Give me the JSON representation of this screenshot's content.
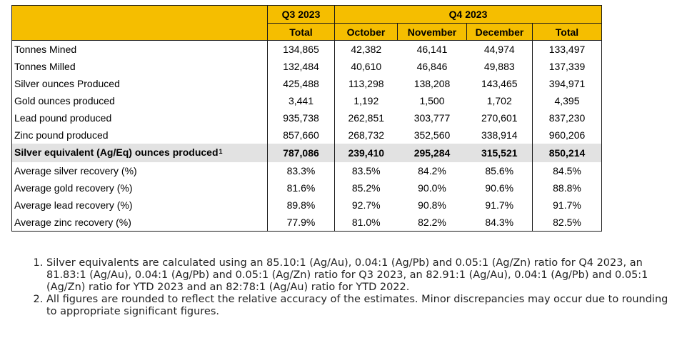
{
  "table": {
    "header_groups": {
      "q3": "Q3 2023",
      "q4": "Q4 2023"
    },
    "columns": [
      "Total",
      "October",
      "November",
      "December",
      "Total"
    ],
    "rows": [
      {
        "label": "Tonnes Mined",
        "sup": "",
        "values": [
          "134,865",
          "42,382",
          "46,141",
          "44,974",
          "133,497"
        ]
      },
      {
        "label": "Tonnes Milled",
        "sup": "",
        "values": [
          "132,484",
          "40,610",
          "46,846",
          "49,883",
          "137,339"
        ]
      },
      {
        "label": "Silver ounces Produced",
        "sup": "",
        "values": [
          "425,488",
          "113,298",
          "138,208",
          "143,465",
          "394,971"
        ]
      },
      {
        "label": "Gold ounces produced",
        "sup": "",
        "values": [
          "3,441",
          "1,192",
          "1,500",
          "1,702",
          "4,395"
        ]
      },
      {
        "label": "Lead pound produced",
        "sup": "",
        "values": [
          "935,738",
          "262,851",
          "303,777",
          "270,601",
          "837,230"
        ]
      },
      {
        "label": "Zinc pound produced",
        "sup": "",
        "values": [
          "857,660",
          "268,732",
          "352,560",
          "338,914",
          "960,206"
        ]
      },
      {
        "label": "Silver equivalent (Ag/Eq) ounces produced",
        "sup": "1",
        "values": [
          "787,086",
          "239,410",
          "295,284",
          "315,521",
          "850,214"
        ]
      },
      {
        "label": "Average silver recovery (%)",
        "sup": "",
        "values": [
          "83.3%",
          "83.5%",
          "84.2%",
          "85.6%",
          "84.5%"
        ]
      },
      {
        "label": "Average gold recovery (%)",
        "sup": "",
        "values": [
          "81.6%",
          "85.2%",
          "90.0%",
          "90.6%",
          "88.8%"
        ]
      },
      {
        "label": "Average lead recovery (%)",
        "sup": "",
        "values": [
          "89.8%",
          "92.7%",
          "90.8%",
          "91.7%",
          "91.7%"
        ]
      },
      {
        "label": "Average zinc recovery (%)",
        "sup": "",
        "values": [
          "77.9%",
          "81.0%",
          "82.2%",
          "84.3%",
          "82.5%"
        ]
      }
    ]
  },
  "footnotes": [
    "Silver equivalents are calculated using an 85.10:1 (Ag/Au), 0.04:1 (Ag/Pb) and 0.05:1 (Ag/Zn) ratio for Q4 2023, an 81.83:1 (Ag/Au), 0.04:1 (Ag/Pb) and 0.05:1 (Ag/Zn) ratio for Q3 2023, an 82.91:1 (Ag/Au), 0.04:1 (Ag/Pb) and 0.05:1 (Ag/Zn) ratio for YTD 2023 and an 82:78:1 (Ag/Au) ratio for YTD 2022.",
    "All figures are rounded to reflect the relative accuracy of the estimates. Minor discrepancies may occur due to rounding to appropriate significant figures."
  ],
  "colors": {
    "header_bg": "#F5BE00",
    "highlight_bg": "#E2E2E2",
    "border": "#1a1a1a"
  }
}
